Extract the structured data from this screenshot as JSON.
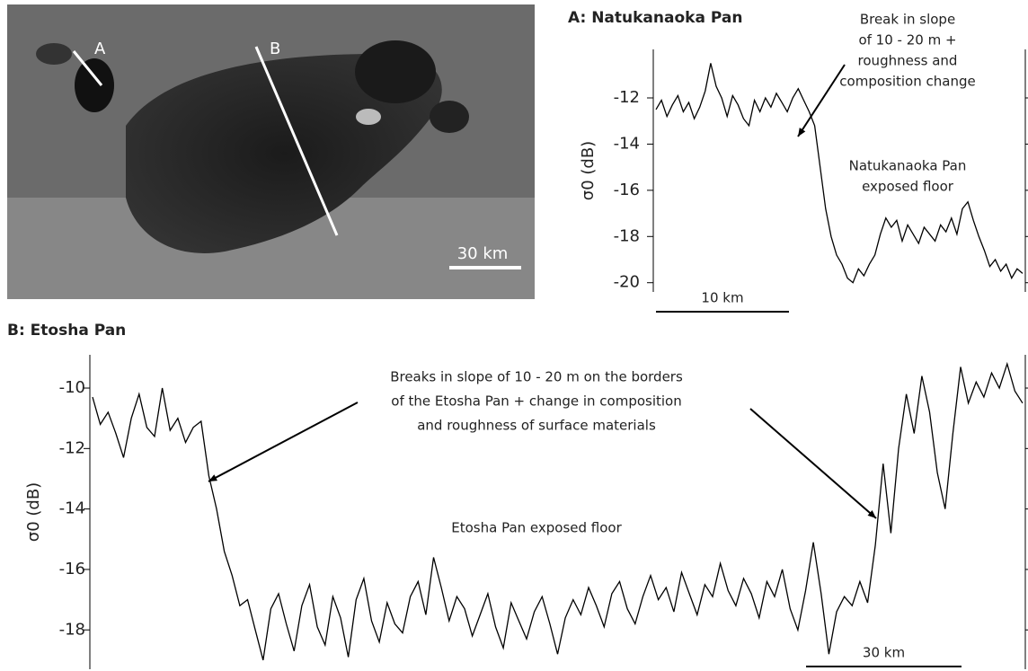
{
  "image": {
    "labels": [
      "A",
      "B"
    ],
    "scale_bar": "30 km"
  },
  "chart_data": [
    {
      "type": "line",
      "title": "A: Natukanaoka Pan",
      "y_label": "σ0 (dB)",
      "color": "#000000",
      "ylim": [
        -20.4,
        -9.9
      ],
      "yticks": [
        -12,
        -14,
        -16,
        -18,
        -20
      ],
      "scale_bar": "10 km",
      "annotations": [
        [
          "Break in slope",
          "of 10 - 20 m +",
          "roughness and",
          "composition change"
        ],
        [
          "Natukanaoka Pan",
          "exposed floor"
        ]
      ],
      "values": [
        -12.5,
        -12.1,
        -12.8,
        -12.3,
        -11.9,
        -12.6,
        -12.2,
        -12.9,
        -12.4,
        -11.7,
        -10.5,
        -11.5,
        -12.0,
        -12.8,
        -11.9,
        -12.3,
        -12.9,
        -13.2,
        -12.1,
        -12.6,
        -12.0,
        -12.4,
        -11.8,
        -12.2,
        -12.6,
        -12.0,
        -11.6,
        -12.1,
        -12.6,
        -13.2,
        -15.0,
        -16.8,
        -18.0,
        -18.8,
        -19.2,
        -19.8,
        -20.0,
        -19.4,
        -19.7,
        -19.2,
        -18.8,
        -17.9,
        -17.2,
        -17.6,
        -17.3,
        -18.2,
        -17.5,
        -17.9,
        -18.3,
        -17.6,
        -17.9,
        -18.2,
        -17.5,
        -17.8,
        -17.2,
        -17.9,
        -16.8,
        -16.5,
        -17.3,
        -18.0,
        -18.6,
        -19.3,
        -19.0,
        -19.5,
        -19.2,
        -19.8,
        -19.4,
        -19.6
      ]
    },
    {
      "type": "line",
      "title": "B: Etosha Pan",
      "y_label": "σ0 (dB)",
      "color": "#000000",
      "ylim": [
        -19.3,
        -8.9
      ],
      "yticks": [
        -10,
        -12,
        -14,
        -16,
        -18
      ],
      "scale_bar": "30 km",
      "annotations": [
        [
          "Breaks in slope of 10 - 20 m on the borders",
          "of the Etosha Pan + change in composition",
          "and roughness of surface materials"
        ],
        [
          "Etosha Pan exposed floor"
        ]
      ],
      "values": [
        -10.3,
        -11.2,
        -10.8,
        -11.5,
        -12.3,
        -11.0,
        -10.2,
        -11.3,
        -11.6,
        -10.0,
        -11.4,
        -11.0,
        -11.8,
        -11.3,
        -11.1,
        -12.9,
        -14.0,
        -15.4,
        -16.2,
        -17.2,
        -17.0,
        -18.0,
        -19.0,
        -17.3,
        -16.8,
        -17.8,
        -18.7,
        -17.2,
        -16.5,
        -17.9,
        -18.5,
        -16.9,
        -17.6,
        -18.9,
        -17.0,
        -16.3,
        -17.7,
        -18.4,
        -17.1,
        -17.8,
        -18.1,
        -16.9,
        -16.4,
        -17.5,
        -15.6,
        -16.6,
        -17.7,
        -16.9,
        -17.3,
        -18.2,
        -17.5,
        -16.8,
        -17.9,
        -18.6,
        -17.1,
        -17.7,
        -18.3,
        -17.4,
        -16.9,
        -17.8,
        -18.8,
        -17.6,
        -17.0,
        -17.5,
        -16.6,
        -17.2,
        -17.9,
        -16.8,
        -16.4,
        -17.3,
        -17.8,
        -16.9,
        -16.2,
        -17.0,
        -16.6,
        -17.4,
        -16.1,
        -16.8,
        -17.5,
        -16.5,
        -16.9,
        -15.8,
        -16.7,
        -17.2,
        -16.3,
        -16.8,
        -17.6,
        -16.4,
        -16.9,
        -16.0,
        -17.3,
        -18.0,
        -16.7,
        -15.1,
        -16.8,
        -18.8,
        -17.4,
        -16.9,
        -17.2,
        -16.4,
        -17.1,
        -15.2,
        -12.5,
        -14.8,
        -12.0,
        -10.2,
        -11.5,
        -9.6,
        -10.8,
        -12.8,
        -14.0,
        -11.5,
        -9.3,
        -10.5,
        -9.8,
        -10.3,
        -9.5,
        -10.0,
        -9.2,
        -10.1,
        -10.5
      ]
    }
  ]
}
